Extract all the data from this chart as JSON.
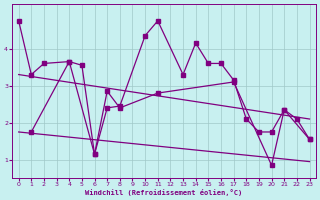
{
  "xlabel": "Windchill (Refroidissement éolien,°C)",
  "bg_color": "#c8f0f0",
  "line_color": "#800080",
  "grid_color": "#a0c8c8",
  "xlim": [
    -0.5,
    23.5
  ],
  "ylim": [
    0.5,
    5.2
  ],
  "yticks": [
    1,
    2,
    3,
    4
  ],
  "xtick_labels": [
    "0",
    "1",
    "2",
    "3",
    "4",
    "5",
    "6",
    "7",
    "8",
    "9",
    "10",
    "11",
    "12",
    "13",
    "14",
    "15",
    "16",
    "17",
    "18",
    "19",
    "20",
    "21",
    "22",
    "23"
  ],
  "xticks": [
    0,
    1,
    2,
    3,
    4,
    5,
    6,
    7,
    8,
    9,
    10,
    11,
    12,
    13,
    14,
    15,
    16,
    17,
    18,
    19,
    20,
    21,
    22,
    23
  ],
  "line1_x": [
    0,
    1,
    2,
    4,
    5,
    6,
    7,
    8,
    10,
    11,
    13,
    14,
    15,
    16,
    17,
    18,
    19,
    20,
    21,
    22,
    23
  ],
  "line1_y": [
    4.75,
    3.3,
    3.6,
    3.65,
    3.55,
    1.15,
    2.4,
    2.45,
    4.35,
    4.75,
    3.3,
    4.15,
    3.6,
    3.6,
    3.15,
    2.1,
    1.75,
    1.75,
    2.35,
    2.1,
    1.55
  ],
  "line2_x": [
    0,
    23
  ],
  "line2_y": [
    3.3,
    2.1
  ],
  "line3_x": [
    1,
    4,
    6,
    7,
    8,
    11,
    17,
    20,
    21,
    23
  ],
  "line3_y": [
    1.75,
    3.65,
    1.15,
    2.85,
    2.4,
    2.8,
    3.1,
    0.85,
    2.35,
    1.55
  ],
  "line4_x": [
    0,
    23
  ],
  "line4_y": [
    1.75,
    0.95
  ],
  "marker_size": 2.5,
  "line_width": 0.9
}
